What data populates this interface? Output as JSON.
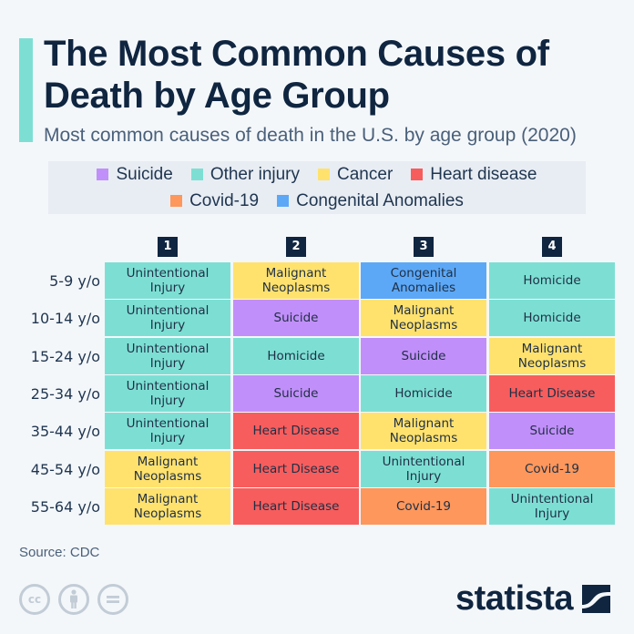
{
  "header": {
    "title": "The Most Common Causes of Death by Age Group",
    "subtitle": "Most common causes of death in the U.S. by age group (2020)"
  },
  "legend": {
    "rows": [
      [
        {
          "label": "Suicide",
          "color": "#c18ff9"
        },
        {
          "label": "Other injury",
          "color": "#7ddfd4"
        },
        {
          "label": "Cancer",
          "color": "#ffe26e"
        },
        {
          "label": "Heart disease",
          "color": "#f75d5d"
        }
      ],
      [
        {
          "label": "Covid-19",
          "color": "#fd975c"
        },
        {
          "label": "Congenital Anomalies",
          "color": "#5ca8f7"
        }
      ]
    ]
  },
  "chart_data": {
    "type": "table",
    "title": "The Most Common Causes of Death by Age Group",
    "subtitle": "Most common causes of death in the U.S. by age group (2020)",
    "columns": [
      "1",
      "2",
      "3",
      "4"
    ],
    "rows": [
      "5-9 y/o",
      "10-14 y/o",
      "15-24 y/o",
      "25-34 y/o",
      "35-44 y/o",
      "45-54 y/o",
      "55-64 y/o"
    ],
    "cells": [
      [
        {
          "text": "Unintentional\nInjury",
          "category": "Other injury"
        },
        {
          "text": "Malignant\nNeoplasms",
          "category": "Cancer"
        },
        {
          "text": "Congenital\nAnomalies",
          "category": "Congenital Anomalies"
        },
        {
          "text": "Homicide",
          "category": "Other injury"
        }
      ],
      [
        {
          "text": "Unintentional\nInjury",
          "category": "Other injury"
        },
        {
          "text": "Suicide",
          "category": "Suicide"
        },
        {
          "text": "Malignant\nNeoplasms",
          "category": "Cancer"
        },
        {
          "text": "Homicide",
          "category": "Other injury"
        }
      ],
      [
        {
          "text": "Unintentional\nInjury",
          "category": "Other injury"
        },
        {
          "text": "Homicide",
          "category": "Other injury"
        },
        {
          "text": "Suicide",
          "category": "Suicide"
        },
        {
          "text": "Malignant\nNeoplasms",
          "category": "Cancer"
        }
      ],
      [
        {
          "text": "Unintentional\nInjury",
          "category": "Other injury"
        },
        {
          "text": "Suicide",
          "category": "Suicide"
        },
        {
          "text": "Homicide",
          "category": "Other injury"
        },
        {
          "text": "Heart Disease",
          "category": "Heart disease"
        }
      ],
      [
        {
          "text": "Unintentional\nInjury",
          "category": "Other injury"
        },
        {
          "text": "Heart Disease",
          "category": "Heart disease"
        },
        {
          "text": "Malignant\nNeoplasms",
          "category": "Cancer"
        },
        {
          "text": "Suicide",
          "category": "Suicide"
        }
      ],
      [
        {
          "text": "Malignant\nNeoplasms",
          "category": "Cancer"
        },
        {
          "text": "Heart Disease",
          "category": "Heart disease"
        },
        {
          "text": "Unintentional\nInjury",
          "category": "Other injury"
        },
        {
          "text": "Covid-19",
          "category": "Covid-19"
        }
      ],
      [
        {
          "text": "Malignant\nNeoplasms",
          "category": "Cancer"
        },
        {
          "text": "Heart Disease",
          "category": "Heart disease"
        },
        {
          "text": "Covid-19",
          "category": "Covid-19"
        },
        {
          "text": "Unintentional\nInjury",
          "category": "Other injury"
        }
      ]
    ],
    "category_colors": {
      "Suicide": "#c18ff9",
      "Other injury": "#7ddfd4",
      "Cancer": "#ffe26e",
      "Heart disease": "#f75d5d",
      "Covid-19": "#fd975c",
      "Congenital Anomalies": "#5ca8f7"
    }
  },
  "footer": {
    "source": "Source: CDC",
    "license_icons": [
      "cc-icon",
      "by-icon",
      "nd-icon"
    ],
    "license_glyphs": [
      "cc",
      "",
      "="
    ],
    "brand": "statista"
  }
}
